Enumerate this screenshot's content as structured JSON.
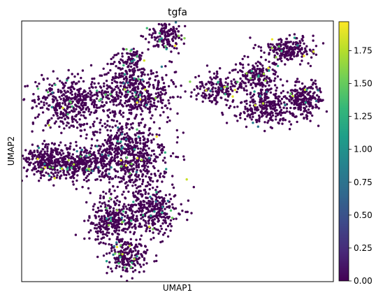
{
  "chart_data": {
    "type": "scatter",
    "title": "tgfa",
    "xlabel": "UMAP1",
    "ylabel": "UMAP2",
    "xticks": false,
    "yticks": false,
    "colorbar": {
      "colormap": "viridis",
      "min": 0.0,
      "max": 1.97,
      "ticks": [
        "0.00",
        "0.25",
        "0.50",
        "0.75",
        "1.00",
        "1.25",
        "1.50",
        "1.75"
      ],
      "tick_values": [
        0.0,
        0.25,
        0.5,
        0.75,
        1.0,
        1.25,
        1.5,
        1.75
      ],
      "stops": [
        "#440154",
        "#482878",
        "#3e4989",
        "#31688e",
        "#26828e",
        "#1f9e89",
        "#35b779",
        "#6ece58",
        "#b5de2b",
        "#fde725"
      ]
    },
    "clusters": [
      {
        "center": [
          -1.0,
          -6.3
        ],
        "spread": [
          0.55,
          0.55
        ],
        "weight": 6
      },
      {
        "center": [
          -1.6,
          -4.5
        ],
        "spread": [
          0.8,
          0.85
        ],
        "weight": 10
      },
      {
        "center": [
          0.1,
          -4.0
        ],
        "spread": [
          0.7,
          0.8
        ],
        "weight": 9
      },
      {
        "center": [
          -0.9,
          -1.2
        ],
        "spread": [
          1.1,
          1.3
        ],
        "weight": 22
      },
      {
        "center": [
          -4.4,
          -1.4
        ],
        "spread": [
          0.6,
          0.55
        ],
        "weight": 8
      },
      {
        "center": [
          -3.0,
          -1.6
        ],
        "spread": [
          0.8,
          0.55
        ],
        "weight": 9
      },
      {
        "center": [
          -3.4,
          1.6
        ],
        "spread": [
          1.0,
          0.9
        ],
        "weight": 14
      },
      {
        "center": [
          -0.8,
          2.1
        ],
        "spread": [
          1.1,
          0.9
        ],
        "weight": 14
      },
      {
        "center": [
          0.6,
          4.9
        ],
        "spread": [
          0.45,
          0.5
        ],
        "weight": 5
      },
      {
        "center": [
          -0.9,
          3.8
        ],
        "spread": [
          0.4,
          0.4
        ],
        "weight": 3
      },
      {
        "center": [
          2.6,
          2.2
        ],
        "spread": [
          0.6,
          0.5
        ],
        "weight": 5
      },
      {
        "center": [
          4.3,
          2.9
        ],
        "spread": [
          0.6,
          0.6
        ],
        "weight": 7
      },
      {
        "center": [
          5.6,
          4.2
        ],
        "spread": [
          0.7,
          0.45
        ],
        "weight": 7
      },
      {
        "center": [
          4.8,
          1.3
        ],
        "spread": [
          0.9,
          0.6
        ],
        "weight": 9
      },
      {
        "center": [
          6.3,
          1.7
        ],
        "spread": [
          0.5,
          0.6
        ],
        "weight": 6
      }
    ],
    "point_count": 4200,
    "expressing_fraction": 0.05,
    "xlim": [
      -5.4,
      7.5
    ],
    "ylim": [
      -7.6,
      5.7
    ]
  }
}
